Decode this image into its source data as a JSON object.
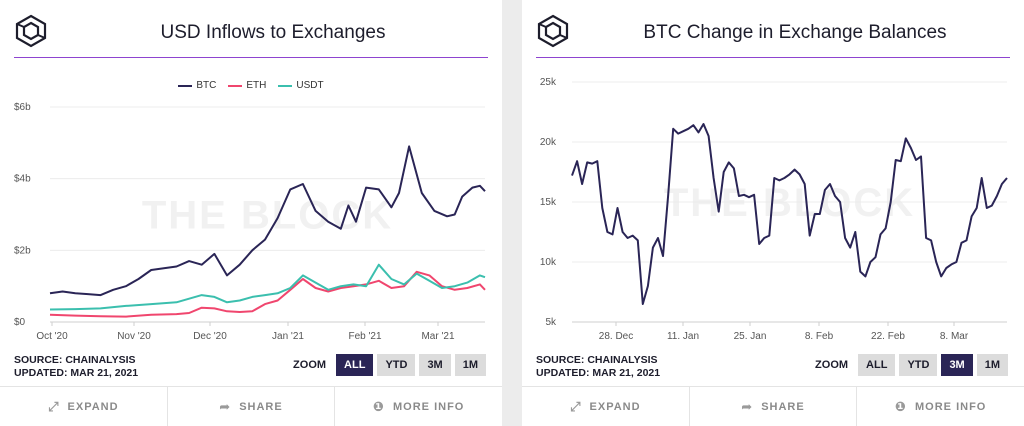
{
  "cards": [
    {
      "title": "USD Inflows to Exchanges",
      "source": "SOURCE: CHAINALYSIS",
      "updated": "UPDATED: MAR 21, 2021",
      "watermark": "THE BLOCK",
      "zoom": {
        "label": "ZOOM",
        "options": [
          "ALL",
          "YTD",
          "3M",
          "1M"
        ],
        "active": "ALL"
      }
    },
    {
      "title": "BTC Change in Exchange Balances",
      "source": "SOURCE: CHAINALYSIS",
      "updated": "UPDATED: MAR 21, 2021",
      "watermark": "THE BLOCK",
      "zoom": {
        "label": "ZOOM",
        "options": [
          "ALL",
          "YTD",
          "3M",
          "1M"
        ],
        "active": "3M"
      }
    }
  ],
  "footer": {
    "expand": "EXPAND",
    "share": "SHARE",
    "more_info": "MORE INFO"
  },
  "icons": {
    "logo": "the-block-cube-logo",
    "expand": "expand-arrows-icon",
    "share": "share-arrow-icon",
    "info": "info-circle-icon"
  },
  "colors": {
    "accent_rule": "#8e44d0",
    "btc": "#2a2556",
    "eth": "#f0466e",
    "usdt": "#3bbfae",
    "zoom_active": "#2a2556"
  },
  "chart_data": [
    {
      "type": "line",
      "title": "USD Inflows to Exchanges",
      "x_ticks": [
        "Oct '20",
        "Nov '20",
        "Dec '20",
        "Jan '21",
        "Feb '21",
        "Mar '21"
      ],
      "y_ticks": [
        "$0",
        "$2b",
        "$4b",
        "$6b"
      ],
      "ylim": [
        0,
        6
      ],
      "x_range": [
        0,
        172
      ],
      "grid": true,
      "legend_position": "top-center",
      "series": [
        {
          "name": "BTC",
          "color": "#2a2556",
          "x": [
            0,
            5,
            10,
            15,
            20,
            25,
            30,
            35,
            40,
            45,
            50,
            55,
            60,
            65,
            70,
            75,
            80,
            85,
            90,
            95,
            100,
            105,
            110,
            115,
            118,
            121,
            125,
            130,
            135,
            138,
            142,
            147,
            152,
            157,
            160,
            163,
            167,
            170,
            172
          ],
          "values": [
            0.8,
            0.85,
            0.8,
            0.78,
            0.75,
            0.9,
            1.0,
            1.2,
            1.45,
            1.5,
            1.55,
            1.7,
            1.6,
            1.9,
            1.3,
            1.6,
            2.0,
            2.3,
            2.9,
            3.7,
            3.85,
            3.1,
            2.8,
            2.6,
            3.25,
            2.8,
            3.75,
            3.7,
            3.2,
            3.6,
            4.9,
            3.6,
            3.1,
            2.95,
            3.0,
            3.5,
            3.75,
            3.8,
            3.65
          ]
        },
        {
          "name": "ETH",
          "color": "#f0466e",
          "x": [
            0,
            10,
            20,
            30,
            40,
            50,
            55,
            60,
            65,
            70,
            75,
            80,
            85,
            90,
            95,
            100,
            105,
            110,
            115,
            120,
            125,
            130,
            135,
            140,
            145,
            150,
            155,
            160,
            165,
            170,
            172
          ],
          "values": [
            0.2,
            0.18,
            0.16,
            0.15,
            0.2,
            0.22,
            0.25,
            0.4,
            0.38,
            0.3,
            0.28,
            0.3,
            0.5,
            0.6,
            0.9,
            1.2,
            0.95,
            0.85,
            0.95,
            1.0,
            1.05,
            1.15,
            0.95,
            1.0,
            1.4,
            1.3,
            1.0,
            0.9,
            0.95,
            1.05,
            0.9
          ]
        },
        {
          "name": "USDT",
          "color": "#3bbfae",
          "x": [
            0,
            10,
            20,
            30,
            40,
            50,
            55,
            60,
            65,
            70,
            75,
            80,
            85,
            90,
            95,
            100,
            105,
            110,
            115,
            120,
            125,
            130,
            135,
            140,
            145,
            150,
            155,
            160,
            165,
            170,
            172
          ],
          "values": [
            0.35,
            0.36,
            0.38,
            0.45,
            0.5,
            0.55,
            0.65,
            0.75,
            0.7,
            0.55,
            0.6,
            0.7,
            0.75,
            0.8,
            0.95,
            1.3,
            1.1,
            0.9,
            1.0,
            1.05,
            1.0,
            1.6,
            1.2,
            1.05,
            1.35,
            1.15,
            0.95,
            1.0,
            1.1,
            1.3,
            1.25
          ]
        }
      ]
    },
    {
      "type": "line",
      "title": "BTC Change in Exchange Balances",
      "x_ticks": [
        "28. Dec",
        "11. Jan",
        "25. Jan",
        "8. Feb",
        "22. Feb",
        "8. Mar"
      ],
      "y_ticks": [
        "5k",
        "10k",
        "15k",
        "20k",
        "25k"
      ],
      "ylim": [
        5,
        25
      ],
      "x_range": [
        0,
        86
      ],
      "grid": true,
      "series": [
        {
          "name": "BTC",
          "color": "#2a2556",
          "x": [
            0,
            1,
            2,
            3,
            4,
            5,
            6,
            7,
            8,
            9,
            10,
            11,
            12,
            13,
            14,
            15,
            16,
            17,
            18,
            19,
            20,
            21,
            22,
            23,
            24,
            25,
            26,
            27,
            28,
            29,
            30,
            31,
            32,
            33,
            34,
            35,
            36,
            37,
            38,
            39,
            40,
            41,
            42,
            43,
            44,
            45,
            46,
            47,
            48,
            49,
            50,
            51,
            52,
            53,
            54,
            55,
            56,
            57,
            58,
            59,
            60,
            61,
            62,
            63,
            64,
            65,
            66,
            67,
            68,
            69,
            70,
            71,
            72,
            73,
            74,
            75,
            76,
            77,
            78,
            79,
            80,
            81,
            82,
            83,
            84,
            85,
            86
          ],
          "values": [
            17.2,
            18.4,
            16.5,
            18.3,
            18.2,
            18.4,
            14.5,
            12.5,
            12.3,
            14.5,
            12.5,
            12.0,
            12.2,
            11.8,
            6.5,
            8.0,
            11.2,
            12.0,
            10.5,
            15.5,
            21.1,
            20.7,
            20.9,
            21.1,
            21.4,
            20.8,
            21.5,
            20.5,
            17.0,
            14.2,
            17.5,
            18.3,
            17.8,
            15.5,
            15.6,
            15.4,
            15.6,
            11.5,
            12.0,
            12.2,
            17.0,
            16.8,
            17.0,
            17.3,
            17.7,
            17.3,
            16.5,
            12.2,
            14.0,
            14.0,
            16.0,
            16.5,
            15.5,
            15.0,
            12.0,
            11.2,
            12.5,
            9.2,
            8.8,
            10.0,
            10.4,
            12.3,
            12.8,
            15.0,
            18.5,
            18.4,
            20.3,
            19.5,
            18.5,
            18.8,
            12.0,
            11.8,
            10.0,
            8.8,
            9.5,
            9.8,
            10.0,
            11.6,
            11.8,
            13.8,
            14.5,
            17.0,
            14.5,
            14.7,
            15.5,
            16.5,
            17.0
          ]
        }
      ]
    }
  ]
}
